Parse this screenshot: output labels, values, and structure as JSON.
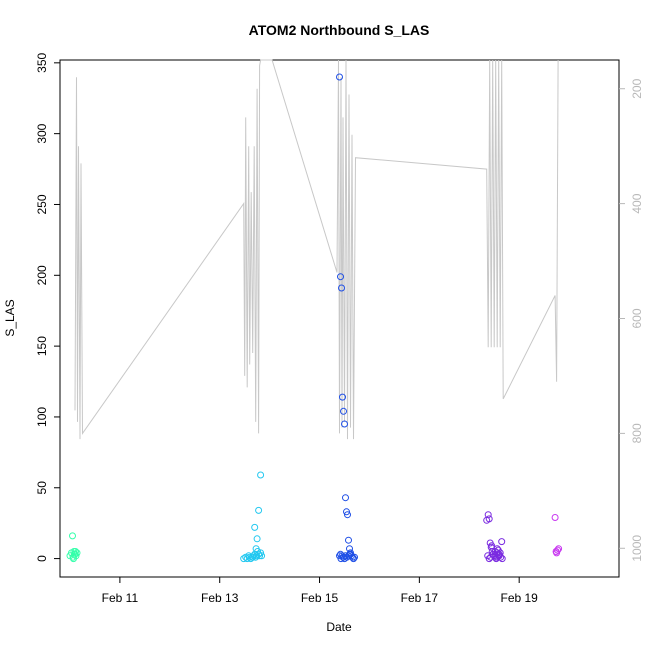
{
  "chart_data": {
    "type": "scatter",
    "title": "ATOM2 Northbound S_LAS",
    "xlabel": "Date",
    "ylabel": "S_LAS",
    "x_unit": "days (February)",
    "xlim": [
      9.8,
      21.0
    ],
    "ylim": [
      -13,
      352
    ],
    "x_ticks": [
      11,
      13,
      15,
      17,
      19
    ],
    "x_tick_labels": [
      "Feb 11",
      "Feb 13",
      "Feb 15",
      "Feb 17",
      "Feb 19"
    ],
    "y_ticks": [
      0,
      50,
      100,
      150,
      200,
      250,
      300,
      350
    ],
    "y_tick_labels": [
      "0",
      "50",
      "100",
      "150",
      "200",
      "250",
      "300",
      "350"
    ],
    "y2_reversed": true,
    "y2_lim": [
      1050,
      150
    ],
    "y2_ticks": [
      200,
      400,
      600,
      800,
      1000
    ],
    "y2_tick_labels": [
      "200",
      "400",
      "600",
      "800",
      "1000"
    ],
    "depth_line_color": "#c8c8c8",
    "depth_line": {
      "x": [
        10.1,
        10.13,
        10.15,
        10.17,
        10.2,
        10.22,
        10.25,
        13.48,
        13.5,
        13.52,
        13.55,
        13.58,
        13.6,
        13.63,
        13.66,
        13.69,
        13.72,
        13.75,
        13.78,
        13.8,
        13.82,
        14.05,
        15.35,
        15.38,
        15.4,
        15.43,
        15.45,
        15.47,
        15.5,
        15.53,
        15.56,
        15.59,
        15.62,
        15.65,
        15.68,
        15.72,
        18.35,
        18.38,
        18.41,
        18.44,
        18.47,
        18.5,
        18.53,
        18.56,
        18.59,
        18.62,
        18.65,
        18.68,
        19.72,
        19.75,
        19.78
      ],
      "y": [
        760,
        180,
        780,
        300,
        810,
        330,
        800,
        400,
        700,
        250,
        720,
        300,
        680,
        380,
        660,
        300,
        780,
        200,
        800,
        160,
        150,
        140,
        520,
        150,
        800,
        180,
        790,
        250,
        780,
        150,
        810,
        210,
        790,
        280,
        810,
        320,
        340,
        650,
        150,
        650,
        150,
        650,
        150,
        650,
        150,
        650,
        150,
        740,
        560,
        710,
        150
      ]
    },
    "series": [
      {
        "color": "#33ffaa",
        "x": [
          10.0,
          10.03,
          10.06,
          10.08,
          10.1,
          10.12,
          10.14,
          10.05,
          10.09,
          10.11,
          10.07
        ],
        "y": [
          2,
          4,
          1,
          5,
          3,
          2,
          4,
          16,
          3,
          5,
          0
        ]
      },
      {
        "color": "#22c8f0",
        "x": [
          13.48,
          13.52,
          13.55,
          13.58,
          13.6,
          13.62,
          13.65,
          13.68,
          13.7,
          13.72,
          13.74,
          13.76,
          13.78,
          13.8,
          13.82,
          13.7,
          13.75,
          13.78,
          13.82,
          13.84,
          13.66,
          13.73
        ],
        "y": [
          0,
          1,
          0,
          2,
          1,
          0,
          1,
          2,
          3,
          1,
          2,
          5,
          3,
          2,
          4,
          22,
          14,
          34,
          59,
          2,
          1,
          7
        ]
      },
      {
        "color": "#1f4fe6",
        "x": [
          15.4,
          15.42,
          15.44,
          15.46,
          15.48,
          15.5,
          15.52,
          15.54,
          15.56,
          15.58,
          15.6,
          15.62,
          15.64,
          15.66,
          15.68,
          15.7,
          15.45,
          15.42,
          15.47,
          15.5,
          15.52,
          15.55,
          15.6,
          15.4,
          15.43,
          15.48,
          15.58,
          15.62
        ],
        "y": [
          340,
          199,
          191,
          114,
          104,
          95,
          43,
          33,
          31,
          13,
          7,
          3,
          2,
          1,
          0,
          1,
          2,
          3,
          1,
          0,
          2,
          1,
          3,
          2,
          0,
          1,
          2,
          4
        ]
      },
      {
        "color": "#7a2be0",
        "x": [
          18.35,
          18.38,
          18.4,
          18.42,
          18.44,
          18.46,
          18.48,
          18.5,
          18.52,
          18.54,
          18.56,
          18.58,
          18.6,
          18.62,
          18.65,
          18.37,
          18.4,
          18.43,
          18.47,
          18.52,
          18.56,
          18.6,
          18.63,
          18.66,
          18.45,
          18.55,
          18.58
        ],
        "y": [
          27,
          31,
          28,
          11,
          8,
          5,
          3,
          2,
          1,
          0,
          1,
          2,
          3,
          4,
          12,
          2,
          0,
          1,
          3,
          5,
          7,
          2,
          1,
          0,
          9,
          4,
          6
        ]
      },
      {
        "color": "#c838f0",
        "x": [
          19.72,
          19.75,
          19.77,
          19.79,
          19.74
        ],
        "y": [
          29,
          4,
          6,
          7,
          5
        ]
      }
    ]
  }
}
